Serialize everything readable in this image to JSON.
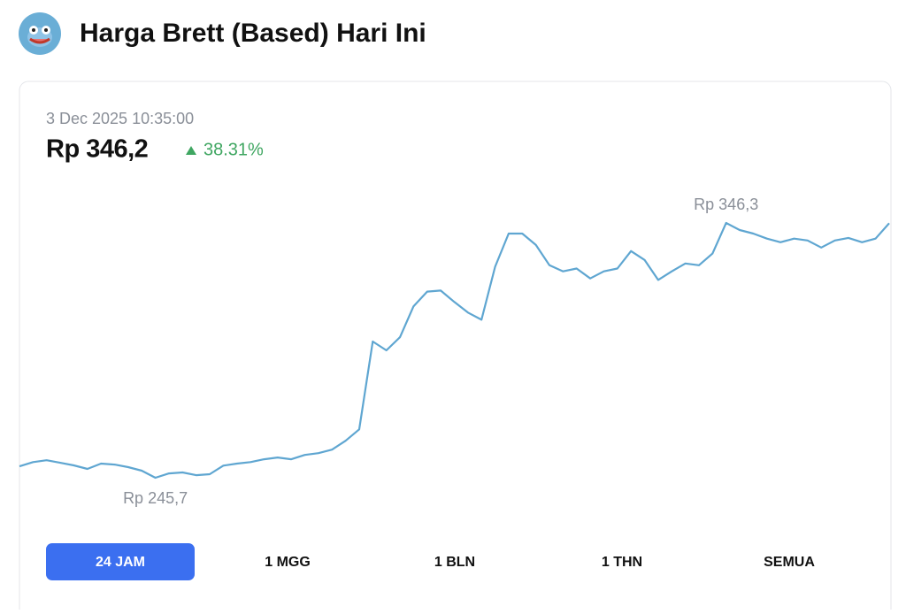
{
  "header": {
    "title": "Harga Brett (Based) Hari Ini"
  },
  "price_card": {
    "timestamp": "3 Dec 2025 10:35:00",
    "price": "Rp 346,2",
    "change": "38.31%"
  },
  "chart_data": {
    "type": "line",
    "color": "#5fa6d1",
    "values": [
      250.2,
      251.9,
      252.6,
      251.6,
      250.6,
      249.2,
      251.3,
      250.9,
      249.9,
      248.5,
      245.7,
      247.4,
      247.8,
      246.7,
      247.1,
      250.5,
      251.3,
      251.9,
      253.0,
      253.7,
      253.0,
      254.7,
      255.4,
      256.8,
      260.3,
      264.8,
      299.5,
      296.0,
      301.2,
      313.4,
      319.2,
      319.6,
      315.1,
      310.9,
      308.1,
      329.0,
      342.1,
      342.1,
      337.6,
      329.6,
      327.2,
      328.3,
      324.4,
      327.2,
      328.3,
      335.2,
      331.7,
      323.8,
      327.2,
      330.3,
      329.6,
      334.2,
      346.3,
      343.5,
      342.1,
      340.1,
      338.7,
      340.1,
      339.4,
      336.6,
      339.4,
      340.4,
      338.7,
      340.1,
      346.2
    ],
    "min_label": {
      "value": 245.7,
      "label": "Rp 245,7"
    },
    "max_label": {
      "value": 346.3,
      "label": "Rp 346,3"
    }
  },
  "tabs": [
    "24 JAM",
    "1 MGG",
    "1 BLN",
    "1 THN",
    "SEMUA"
  ]
}
